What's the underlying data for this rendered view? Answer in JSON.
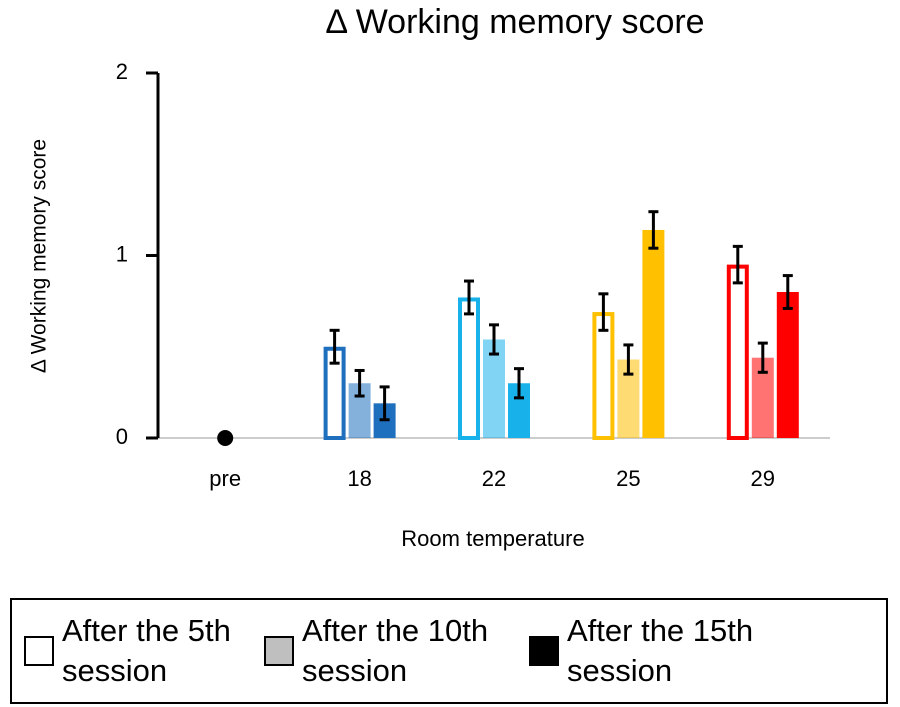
{
  "chart_data": {
    "type": "bar",
    "title": "Δ Working memory score",
    "y_label": "Δ Working memory score",
    "x_label": "Room temperature",
    "categories": [
      "pre",
      "18",
      "22",
      "25",
      "29"
    ],
    "category_colors": [
      null,
      "#1f6fbf",
      "#19b1ea",
      "#ffc000",
      "#ff0000"
    ],
    "pre_value": 0,
    "series": [
      {
        "name": "After the 5th session",
        "color": "#ffffff",
        "style": "outline",
        "values": [
          null,
          0.5,
          0.77,
          0.69,
          0.95
        ],
        "errors": [
          null,
          0.09,
          0.09,
          0.1,
          0.1
        ]
      },
      {
        "name": "After the 10th session",
        "color": "#bfbfbf",
        "style": "tint",
        "values": [
          null,
          0.3,
          0.54,
          0.43,
          0.44
        ],
        "errors": [
          null,
          0.07,
          0.08,
          0.08,
          0.08
        ]
      },
      {
        "name": "After the 15th session",
        "color": "#000000",
        "style": "solid",
        "values": [
          null,
          0.19,
          0.3,
          1.14,
          0.8
        ],
        "errors": [
          null,
          0.09,
          0.08,
          0.1,
          0.09
        ]
      }
    ],
    "ylim": [
      0,
      2
    ],
    "yticks": [
      0,
      1,
      2
    ]
  }
}
